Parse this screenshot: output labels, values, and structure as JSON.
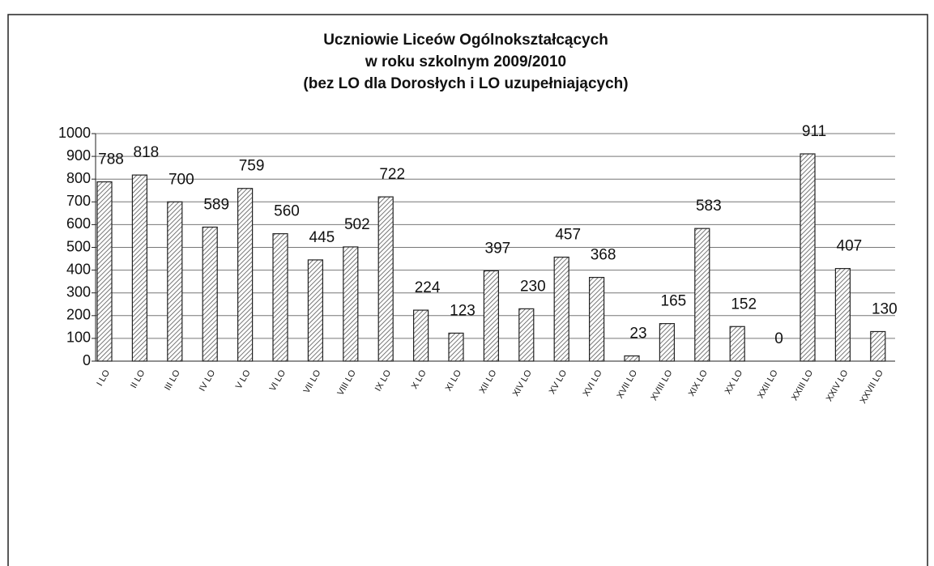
{
  "chart_data": {
    "type": "bar",
    "title": [
      "Uczniowie Liceów Ogólnokształcących",
      "w roku szkolnym 2009/2010",
      "(bez LO dla Dorosłych i LO uzupełniających)"
    ],
    "categories": [
      "I LO",
      "II LO",
      "III LO",
      "IV LO",
      "V LO",
      "VI LO",
      "VII LO",
      "VIII LO",
      "IX LO",
      "X LO",
      "XI LO",
      "XII LO",
      "XIV LO",
      "XV LO",
      "XVI LO",
      "XVII LO",
      "XVIII LO",
      "XIX LO",
      "XX LO",
      "XXII LO",
      "XXIII LO",
      "XXIV LO",
      "XXVII LO"
    ],
    "values": [
      788,
      818,
      700,
      589,
      759,
      560,
      445,
      502,
      722,
      224,
      123,
      397,
      230,
      457,
      368,
      23,
      165,
      583,
      152,
      0,
      911,
      407,
      130
    ],
    "color": "#555555",
    "ylim": [
      0,
      1000
    ],
    "yticks": [
      0,
      100,
      200,
      300,
      400,
      500,
      600,
      700,
      800,
      900,
      1000
    ],
    "grid": true
  }
}
